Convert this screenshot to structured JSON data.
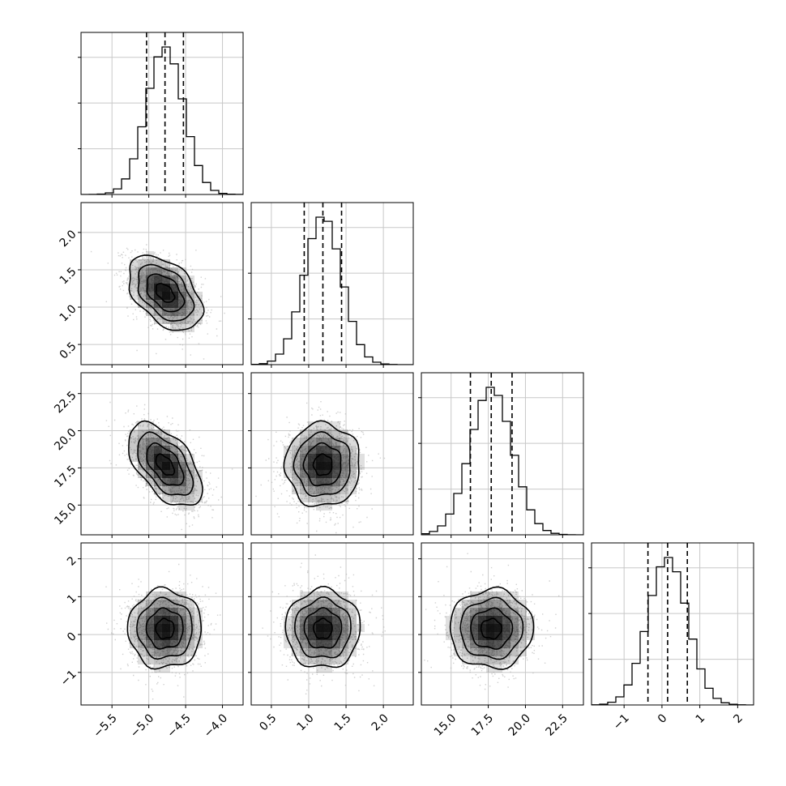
{
  "chart_data": {
    "type": "corner",
    "parameters": [
      {
        "mean": -4.78,
        "sigma": 0.25,
        "quantiles": [
          -5.03,
          -4.78,
          -4.53
        ],
        "range": [
          -5.92,
          -3.72
        ],
        "ticks": [
          -5.5,
          -5.0,
          -4.5,
          -4.0
        ],
        "tick_labels": [
          "−5.5",
          "−5.0",
          "−4.5",
          "−4.0"
        ]
      },
      {
        "mean": 1.19,
        "sigma": 0.25,
        "quantiles": [
          0.94,
          1.19,
          1.44
        ],
        "range": [
          0.23,
          2.4
        ],
        "ticks": [
          0.5,
          1.0,
          1.5,
          2.0
        ],
        "tick_labels": [
          "0.5",
          "1.0",
          "1.5",
          "2.0"
        ]
      },
      {
        "mean": 17.7,
        "sigma": 1.4,
        "quantiles": [
          16.3,
          17.7,
          19.1
        ],
        "range": [
          13.0,
          23.9
        ],
        "ticks": [
          15.0,
          17.5,
          20.0,
          22.5
        ],
        "tick_labels": [
          "15.0",
          "17.5",
          "20.0",
          "22.5"
        ]
      },
      {
        "mean": 0.15,
        "sigma": 0.52,
        "quantiles": [
          -0.37,
          0.15,
          0.67
        ],
        "range": [
          -1.86,
          2.42
        ],
        "ticks": [
          -1,
          0,
          1,
          2
        ],
        "tick_labels": [
          "−1",
          "0",
          "1",
          "2"
        ]
      }
    ],
    "correlations": [
      [
        1,
        -0.45,
        -0.55,
        0.0
      ],
      [
        -0.45,
        1,
        0.0,
        0.0
      ],
      [
        -0.55,
        0.0,
        1,
        0.0
      ],
      [
        0.0,
        0.0,
        0.0,
        1
      ]
    ],
    "histogram_bins": 20,
    "contour_levels_sigma": [
      0.5,
      1.0,
      1.5,
      2.0
    ],
    "grid": true,
    "quantile_lines": "dashed",
    "colors": {
      "line": "#000000",
      "points": "#b0b0b0",
      "grid": "#c8c8c8",
      "density": "#000000"
    }
  }
}
